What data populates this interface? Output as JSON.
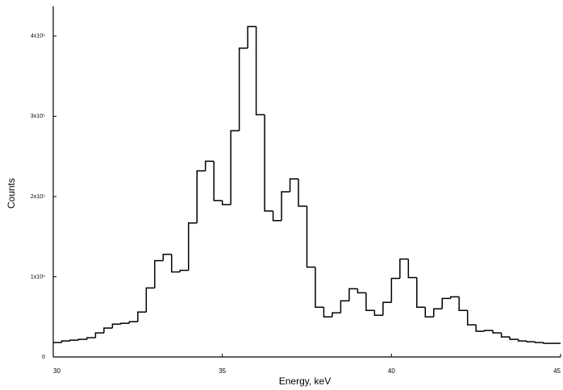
{
  "chart_data": {
    "type": "histogram",
    "x_label": "Energy, keV",
    "y_label": "Counts",
    "bins": [
      30,
      30.25,
      30.5,
      30.75,
      31,
      31.25,
      31.5,
      31.75,
      32,
      32.25,
      32.5,
      32.75,
      33,
      33.25,
      33.5,
      33.75,
      34,
      34.25,
      34.5,
      34.75,
      35,
      35.25,
      35.5,
      35.75,
      36,
      36.25,
      36.5,
      36.75,
      37,
      37.25,
      37.5,
      37.75,
      38,
      38.25,
      38.5,
      38.75,
      39,
      39.25,
      39.5,
      39.75,
      40,
      40.25,
      40.5,
      40.75,
      41,
      41.25,
      41.5,
      41.75,
      42,
      42.25,
      42.5,
      42.75,
      43,
      43.25,
      43.5,
      43.75,
      44,
      44.25,
      44.5,
      44.75,
      45
    ],
    "values": [
      18000,
      20000,
      21000,
      22000,
      24000,
      30000,
      36000,
      41000,
      42000,
      44000,
      56000,
      86000,
      120000,
      128000,
      106000,
      108000,
      167000,
      232000,
      244000,
      195000,
      190000,
      282000,
      385000,
      412000,
      302000,
      182000,
      170000,
      206000,
      222000,
      188000,
      112000,
      62000,
      50000,
      55000,
      70000,
      85000,
      80000,
      58000,
      52000,
      68000,
      98000,
      122000,
      99000,
      62000,
      50000,
      60000,
      73000,
      75000,
      58000,
      40000,
      32000,
      33000,
      30000,
      25000,
      22000,
      20000,
      19000,
      18000,
      17000,
      17000
    ],
    "color": "#000000",
    "xlim": [
      30,
      45
    ],
    "xticks": [
      30,
      35,
      40,
      45
    ],
    "ylim": [
      0,
      437000
    ],
    "yticks": [
      0,
      {
        "value": 100000,
        "label": "1x10⁵"
      },
      {
        "value": 200000,
        "label": "2x10⁵"
      },
      {
        "value": 300000,
        "label": "3x10⁵"
      },
      {
        "value": 400000,
        "label": "4x10⁵"
      }
    ]
  }
}
